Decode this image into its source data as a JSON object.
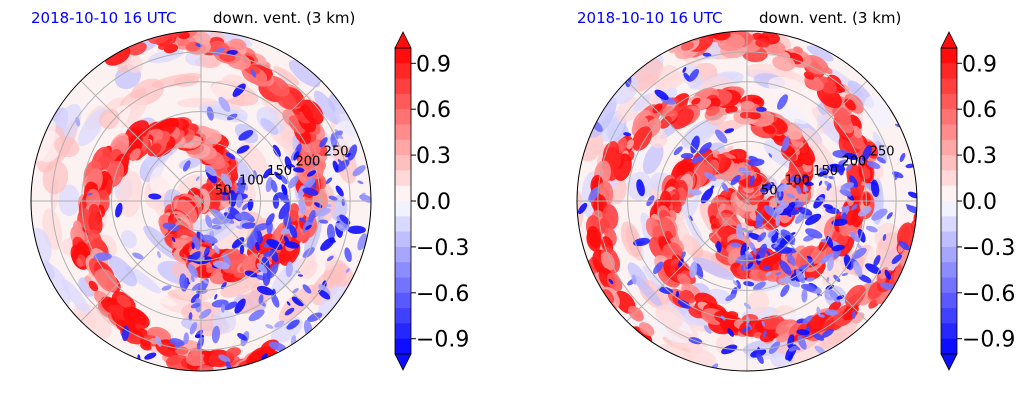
{
  "colors": {
    "date_text": "#0000ff",
    "title_text": "#000000",
    "positive": "#ff0000",
    "negative": "#0000ff",
    "grid": "#b0b0b0"
  },
  "chart_data": [
    {
      "type": "heatmap",
      "projection": "polar",
      "title_date": "2018-10-10 16 UTC",
      "title_var": "down. vent. (3 km)",
      "radial_ticks": [
        "50",
        "100",
        "150",
        "200",
        "250"
      ],
      "radial_values": [
        50,
        100,
        150,
        200,
        250
      ],
      "r_max": 285,
      "colorbar": {
        "ticks": [
          "0.9",
          "0.6",
          "0.3",
          "0.0",
          "−0.3",
          "−0.6",
          "−0.9"
        ],
        "tick_values": [
          0.9,
          0.6,
          0.3,
          0.0,
          -0.3,
          -0.6,
          -0.9
        ],
        "range": [
          -1.0,
          1.0
        ],
        "extend": "both",
        "colormap": "bwr"
      },
      "grid": true
    },
    {
      "type": "heatmap",
      "projection": "polar",
      "title_date": "2018-10-10 16 UTC",
      "title_var": "down. vent. (3 km)",
      "radial_ticks": [
        "50",
        "100",
        "150",
        "200",
        "250"
      ],
      "radial_values": [
        50,
        100,
        150,
        200,
        250
      ],
      "r_max": 285,
      "colorbar": {
        "ticks": [
          "0.9",
          "0.6",
          "0.3",
          "0.0",
          "−0.3",
          "−0.6",
          "−0.9"
        ],
        "tick_values": [
          0.9,
          0.6,
          0.3,
          0.0,
          -0.3,
          -0.6,
          -0.9
        ],
        "range": [
          -1.0,
          1.0
        ],
        "extend": "both",
        "colormap": "bwr"
      },
      "grid": true
    }
  ]
}
